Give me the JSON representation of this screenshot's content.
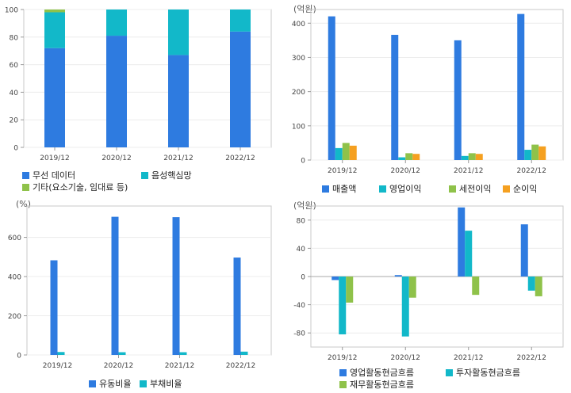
{
  "colors": {
    "blue": "#2e7be0",
    "teal": "#12b8c9",
    "green": "#8fc24a",
    "orange": "#f5a020"
  },
  "chart_data": [
    {
      "type": "bar",
      "stacked": true,
      "unit": "",
      "categories": [
        "2019/12",
        "2020/12",
        "2021/12",
        "2022/12"
      ],
      "ylim": [
        0,
        100
      ],
      "yticks": [
        0,
        20,
        40,
        60,
        80,
        100
      ],
      "grid": true,
      "legend_position": "bottom",
      "series": [
        {
          "name": "무선 데이터",
          "color": "blue",
          "values": [
            72,
            81,
            67,
            84
          ]
        },
        {
          "name": "음성핵심망",
          "color": "teal",
          "values": [
            26,
            19,
            33,
            16
          ]
        },
        {
          "name": "기타(요소기술, 임대료 등)",
          "color": "green",
          "values": [
            2,
            0,
            0,
            0
          ]
        }
      ]
    },
    {
      "type": "bar",
      "unit": "(억원)",
      "categories": [
        "2019/12",
        "2020/12",
        "2021/12",
        "2022/12"
      ],
      "ylim": [
        0,
        440
      ],
      "yticks": [
        0,
        100,
        200,
        300,
        400
      ],
      "grid": true,
      "legend_position": "bottom",
      "series": [
        {
          "name": "매출액",
          "color": "blue",
          "values": [
            420,
            366,
            350,
            427
          ]
        },
        {
          "name": "영업이익",
          "color": "teal",
          "values": [
            35,
            8,
            12,
            30
          ]
        },
        {
          "name": "세전이익",
          "color": "green",
          "values": [
            50,
            20,
            20,
            45
          ]
        },
        {
          "name": "순이익",
          "color": "orange",
          "values": [
            42,
            18,
            18,
            40
          ]
        }
      ]
    },
    {
      "type": "bar",
      "unit": "(%)",
      "categories": [
        "2019/12",
        "2020/12",
        "2021/12",
        "2022/12"
      ],
      "ylim": [
        0,
        760
      ],
      "yticks": [
        0,
        200,
        400,
        600
      ],
      "grid": true,
      "legend_position": "bottom",
      "series": [
        {
          "name": "유동비율",
          "color": "blue",
          "values": [
            483,
            705,
            703,
            497
          ]
        },
        {
          "name": "부채비율",
          "color": "teal",
          "values": [
            15,
            14,
            14,
            17
          ]
        }
      ]
    },
    {
      "type": "bar",
      "unit": "(억원)",
      "categories": [
        "2019/12",
        "2020/12",
        "2021/12",
        "2022/12"
      ],
      "ylim": [
        -100,
        100
      ],
      "yticks": [
        -80,
        -40,
        0,
        40,
        80
      ],
      "grid": true,
      "legend_position": "bottom",
      "series": [
        {
          "name": "영업활동현금흐름",
          "color": "blue",
          "values": [
            -5,
            2,
            98,
            74
          ]
        },
        {
          "name": "투자활동현금흐름",
          "color": "teal",
          "values": [
            -82,
            -85,
            65,
            -20
          ]
        },
        {
          "name": "재무활동현금흐름",
          "color": "green",
          "values": [
            -37,
            -30,
            -26,
            -28
          ]
        }
      ]
    }
  ]
}
